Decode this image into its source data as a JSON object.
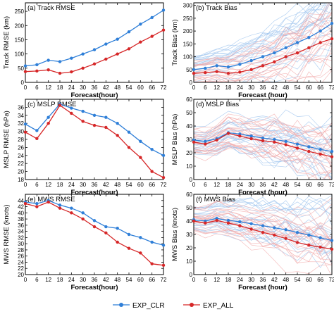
{
  "legend": {
    "items": [
      {
        "label": "EXP_CLR",
        "color": "#2f7fd8"
      },
      {
        "label": "EXP_ALL",
        "color": "#d62728"
      }
    ]
  },
  "colors": {
    "clr": "#2f7fd8",
    "all": "#d62728",
    "clr_light": "#9cc3ee",
    "all_light": "#f1aaaa"
  },
  "chart_data": [
    {
      "panel": "a",
      "type": "line",
      "title": "(a) Track RMSE",
      "xlabel": "Forecast(hour)",
      "ylabel": "Track RMSE (km)",
      "x": [
        0,
        6,
        12,
        18,
        24,
        30,
        36,
        42,
        48,
        54,
        60,
        66,
        72
      ],
      "ylim": [
        0,
        280
      ],
      "yticks": [
        0,
        50,
        100,
        150,
        200,
        250
      ],
      "series": [
        {
          "name": "EXP_CLR",
          "values": [
            58,
            62,
            78,
            73,
            85,
            100,
            115,
            135,
            152,
            178,
            205,
            228,
            254
          ]
        },
        {
          "name": "EXP_ALL",
          "values": [
            38,
            40,
            44,
            32,
            37,
            50,
            65,
            82,
            100,
            118,
            142,
            162,
            184
          ]
        }
      ]
    },
    {
      "panel": "b",
      "type": "line",
      "title": "(b) Track Bias",
      "xlabel": "Forecast (hour)",
      "ylabel": "Track Bias (km)",
      "x": [
        0,
        6,
        12,
        18,
        24,
        30,
        36,
        42,
        48,
        54,
        60,
        66,
        72
      ],
      "ylim": [
        0,
        310
      ],
      "yticks": [
        0,
        50,
        100,
        150,
        200,
        250,
        300
      ],
      "series": [
        {
          "name": "EXP_CLR",
          "values": [
            50,
            55,
            65,
            60,
            70,
            85,
            100,
            115,
            135,
            155,
            175,
            200,
            230
          ]
        },
        {
          "name": "EXP_ALL",
          "values": [
            35,
            38,
            42,
            35,
            40,
            50,
            65,
            80,
            100,
            115,
            135,
            155,
            170
          ]
        }
      ]
    },
    {
      "panel": "c",
      "type": "line",
      "title": "(c) MSLP RMSE",
      "xlabel": "Forecast(hour)",
      "ylabel": "MSLP RMSE (hPa)",
      "x": [
        0,
        6,
        12,
        18,
        24,
        30,
        36,
        42,
        48,
        54,
        60,
        66,
        72
      ],
      "ylim": [
        18,
        38
      ],
      "yticks": [
        18,
        20,
        22,
        24,
        26,
        28,
        30,
        32,
        34,
        36
      ],
      "series": [
        {
          "name": "EXP_CLR",
          "values": [
            31.8,
            30.2,
            33.5,
            36.8,
            35.8,
            35.0,
            34.0,
            33.5,
            32.0,
            29.8,
            27.5,
            25.5,
            24.0
          ]
        },
        {
          "name": "EXP_ALL",
          "values": [
            29.8,
            28.2,
            32.0,
            36.5,
            34.5,
            32.5,
            31.5,
            31.0,
            29.0,
            26.0,
            23.5,
            20.0,
            18.5
          ]
        }
      ]
    },
    {
      "panel": "d",
      "type": "line",
      "title": "(d) MSLP Bias",
      "xlabel": "Forecast (hour)",
      "ylabel": "MSLP Bias (hPa)",
      "x": [
        0,
        6,
        12,
        18,
        24,
        30,
        36,
        42,
        48,
        54,
        60,
        66,
        72
      ],
      "ylim": [
        0,
        60
      ],
      "yticks": [
        0,
        10,
        20,
        30,
        40,
        50,
        60
      ],
      "series": [
        {
          "name": "EXP_CLR",
          "values": [
            29.5,
            28.5,
            30.5,
            35.0,
            34.0,
            32.5,
            31.0,
            30.0,
            28.5,
            26.5,
            24.5,
            22.5,
            21.0
          ]
        },
        {
          "name": "EXP_ALL",
          "values": [
            28.0,
            26.5,
            29.5,
            34.5,
            32.5,
            30.5,
            29.0,
            28.0,
            26.0,
            23.5,
            21.0,
            19.0,
            17.0
          ]
        }
      ]
    },
    {
      "panel": "e",
      "type": "line",
      "title": "(e) MWS RMSE",
      "xlabel": "Forecast(hour)",
      "ylabel": "MWS RMSE (knots)",
      "x": [
        0,
        6,
        12,
        18,
        24,
        30,
        36,
        42,
        48,
        54,
        60,
        66,
        72
      ],
      "ylim": [
        20,
        46
      ],
      "yticks": [
        20,
        22,
        24,
        26,
        28,
        30,
        32,
        34,
        36,
        38,
        40,
        42,
        44
      ],
      "series": [
        {
          "name": "EXP_CLR",
          "values": [
            43.5,
            43.0,
            44.0,
            42.5,
            41.5,
            40.0,
            37.5,
            35.5,
            35.0,
            33.0,
            32.0,
            30.5,
            29.5
          ]
        },
        {
          "name": "EXP_ALL",
          "values": [
            43.0,
            42.0,
            43.5,
            41.5,
            40.0,
            38.0,
            35.5,
            33.5,
            30.5,
            28.5,
            27.0,
            23.5,
            23.0
          ]
        }
      ]
    },
    {
      "panel": "f",
      "type": "line",
      "title": "(f) MWS Bias",
      "xlabel": "Forecast (hour)",
      "ylabel": "MWS Bias (knots)",
      "x": [
        0,
        6,
        12,
        18,
        24,
        30,
        36,
        42,
        48,
        54,
        60,
        66,
        72
      ],
      "ylim": [
        0,
        60
      ],
      "yticks": [
        0,
        10,
        20,
        30,
        40,
        50,
        60
      ],
      "series": [
        {
          "name": "EXP_CLR",
          "values": [
            41.0,
            40.0,
            42.0,
            40.5,
            39.5,
            38.0,
            36.5,
            35.0,
            33.5,
            31.5,
            29.5,
            27.5,
            25.5
          ]
        },
        {
          "name": "EXP_ALL",
          "values": [
            40.0,
            38.5,
            40.5,
            38.5,
            36.5,
            34.0,
            31.5,
            29.5,
            27.0,
            24.0,
            22.0,
            20.5,
            19.0
          ]
        }
      ]
    }
  ]
}
